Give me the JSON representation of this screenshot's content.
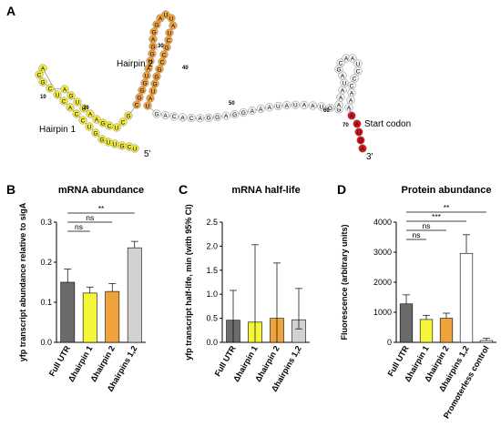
{
  "panels": {
    "a_letter": "A",
    "b_letter": "B",
    "c_letter": "C",
    "d_letter": "D"
  },
  "structure": {
    "hairpin1_label": "Hairpin 1",
    "hairpin2_label": "Hairpin 2",
    "start_codon_label": "Start codon",
    "five_prime": "5'",
    "three_prime": "3'",
    "position_numbers": [
      "10",
      "20",
      "30",
      "40",
      "50",
      "60",
      "70"
    ],
    "hairpin1_sequence": [
      "U",
      "C",
      "G",
      "U",
      "U",
      "G",
      "G",
      "U",
      "C",
      "C",
      "A",
      "C",
      "U",
      "A",
      "C",
      "G",
      "C",
      "A",
      "G",
      "U",
      "U",
      "A",
      "A",
      "G",
      "C",
      "U",
      "C",
      "G"
    ],
    "hairpin2_sequence": [
      "C",
      "G",
      "G",
      "G",
      "U",
      "A",
      "U",
      "G",
      "G",
      "A",
      "G",
      "G",
      "A",
      "U",
      "U",
      "A",
      "U",
      "C",
      "G",
      "C"
    ],
    "linker_sequence": [
      "G",
      "A",
      "C",
      "A",
      "C",
      "A",
      "G",
      "G",
      "A",
      "G",
      "G",
      "A",
      "A",
      "A",
      "U",
      "A",
      "U",
      "A",
      "A",
      "U",
      "G"
    ],
    "hairpin3_sequence": [
      "A",
      "A",
      "A",
      "U",
      "A",
      "G",
      "C",
      "A",
      "A",
      "U",
      "C",
      "C",
      "C"
    ],
    "start_codon_sequence": [
      "A",
      "A",
      "U",
      "G",
      "A"
    ],
    "colors": {
      "hairpin1": "#f5e93a",
      "hairpin2": "#f0a23c",
      "other": "#f2f2f2",
      "start": "#d8141e"
    }
  },
  "chart_data": [
    {
      "panel": "B",
      "type": "bar",
      "title": "mRNA abundance",
      "ylabel": "yfp transcript abundance relative to sigA",
      "categories": [
        "Full UTR",
        "Δhairpin 1",
        "Δhairpin 2",
        "Δhairpins 1,2"
      ],
      "values": [
        0.15,
        0.123,
        0.127,
        0.236
      ],
      "error_upper": [
        0.183,
        0.138,
        0.147,
        0.252
      ],
      "ylim": [
        0,
        0.3
      ],
      "yticks": [
        "0.0",
        "0.1",
        "0.2",
        "0.3"
      ],
      "colors": [
        "#6b6b6b",
        "#f5f53a",
        "#f0a23c",
        "#d2d2d2"
      ],
      "significance": [
        {
          "from": 0,
          "to": 1,
          "label": "ns"
        },
        {
          "from": 0,
          "to": 2,
          "label": "ns"
        },
        {
          "from": 0,
          "to": 3,
          "label": "**"
        }
      ]
    },
    {
      "panel": "C",
      "type": "bar",
      "title": "mRNA half-life",
      "ylabel": "yfp transcript half-life, min (with 95% CI)",
      "categories": [
        "Full UTR",
        "Δhairpin 1",
        "Δhairpin 2",
        "Δhairpins 1,2"
      ],
      "values": [
        0.46,
        0.42,
        0.5,
        0.47
      ],
      "error_upper": [
        1.08,
        2.03,
        1.65,
        1.12
      ],
      "error_lower": [
        0.0,
        0.0,
        0.0,
        0.28
      ],
      "ylim": [
        0,
        2.5
      ],
      "yticks": [
        "0.0",
        "0.5",
        "1.0",
        "1.5",
        "2.0",
        "2.5"
      ],
      "colors": [
        "#6b6b6b",
        "#f5f53a",
        "#f0a23c",
        "#d2d2d2"
      ]
    },
    {
      "panel": "D",
      "type": "bar",
      "title": "Protein abundance",
      "ylabel": "Fluorescence (arbitrary units)",
      "categories": [
        "Full UTR",
        "Δhairpin 1",
        "Δhairpin 2",
        "Δhairpins 1,2",
        "Promoterless control"
      ],
      "values": [
        1280,
        760,
        800,
        2960,
        60
      ],
      "error_upper": [
        1580,
        900,
        970,
        3580,
        130
      ],
      "ylim": [
        0,
        4000
      ],
      "yticks": [
        "0",
        "1000",
        "2000",
        "3000",
        "4000"
      ],
      "colors": [
        "#6b6b6b",
        "#f5f53a",
        "#f0a23c",
        "#ffffff",
        "#ffffff"
      ],
      "significance": [
        {
          "from": 0,
          "to": 1,
          "label": "ns"
        },
        {
          "from": 0,
          "to": 2,
          "label": "ns"
        },
        {
          "from": 0,
          "to": 3,
          "label": "***"
        },
        {
          "from": 0,
          "to": 4,
          "label": "**"
        }
      ]
    }
  ]
}
